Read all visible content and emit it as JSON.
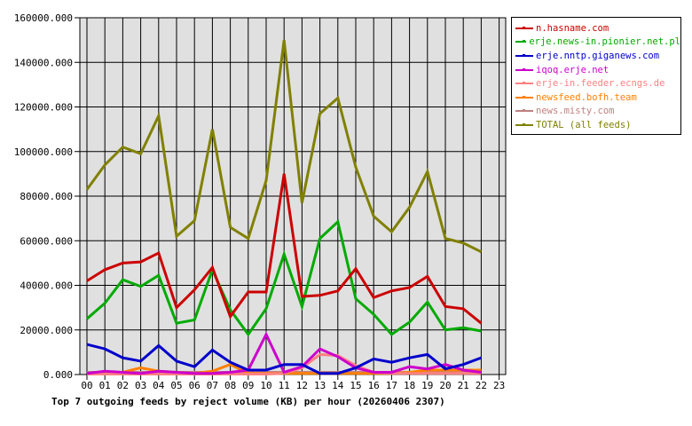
{
  "chart_data": {
    "type": "line",
    "title": "Top 7 outgoing feeds by reject volume (KB) per hour (20260406 2307)",
    "xlabel": "",
    "ylabel": "",
    "ylim": [
      0,
      160000
    ],
    "yticks": [
      "0.000",
      "20000.000",
      "40000.000",
      "60000.000",
      "80000.000",
      "100000.000",
      "120000.000",
      "140000.000",
      "160000.000"
    ],
    "categories": [
      "00",
      "01",
      "02",
      "03",
      "04",
      "05",
      "06",
      "07",
      "08",
      "09",
      "10",
      "11",
      "12",
      "13",
      "14",
      "15",
      "16",
      "17",
      "18",
      "19",
      "20",
      "21",
      "22",
      "23"
    ],
    "grid": true,
    "legend_position": "right",
    "series": [
      {
        "name": "n.hasname.com",
        "color": "#cc0000",
        "values": [
          42000,
          47000,
          50000,
          50500,
          54500,
          30000,
          38000,
          48000,
          26000,
          37000,
          37000,
          90000,
          35000,
          35500,
          37500,
          47500,
          34500,
          37500,
          39000,
          44000,
          30500,
          29500,
          23000
        ]
      },
      {
        "name": "erje.news-in.pionier.net.pl",
        "color": "#00aa00",
        "values": [
          25000,
          32000,
          42500,
          39500,
          44500,
          23000,
          24500,
          47000,
          29000,
          18000,
          29500,
          54000,
          30500,
          61000,
          68500,
          34000,
          27000,
          18000,
          23500,
          32500,
          20000,
          21000,
          19500
        ]
      },
      {
        "name": "erje.nntp.giganews.com",
        "color": "#0000cc",
        "values": [
          13500,
          11500,
          7500,
          6000,
          13000,
          6000,
          3500,
          11000,
          5500,
          2000,
          2000,
          4500,
          4500,
          500,
          500,
          3000,
          7000,
          5500,
          7500,
          9000,
          2500,
          4500,
          7500
        ]
      },
      {
        "name": "iqoq.erje.net",
        "color": "#cc00cc",
        "values": [
          500,
          1500,
          1000,
          500,
          1500,
          1000,
          500,
          500,
          1000,
          2000,
          18000,
          1000,
          3500,
          11500,
          8000,
          3000,
          1000,
          1000,
          3500,
          2500,
          4500,
          2000,
          1000
        ]
      },
      {
        "name": "erje-in.feeder.ecngs.de",
        "color": "#ff8080",
        "values": [
          200,
          200,
          200,
          200,
          200,
          200,
          200,
          200,
          200,
          200,
          200,
          500,
          3000,
          9000,
          8500,
          4000,
          1000,
          500,
          500,
          500,
          500,
          500,
          500
        ]
      },
      {
        "name": "newsfeed.bofh.team",
        "color": "#ff8000",
        "values": [
          500,
          500,
          1000,
          3000,
          1500,
          1000,
          500,
          1500,
          4500,
          500,
          500,
          500,
          500,
          500,
          500,
          500,
          500,
          500,
          1000,
          2000,
          2000,
          2000,
          2000
        ]
      },
      {
        "name": "news.misty.com",
        "color": "#c08080",
        "values": [
          1000,
          1000,
          1000,
          1000,
          1000,
          1000,
          1000,
          1000,
          1000,
          1000,
          1000,
          1000,
          1000,
          1000,
          1000,
          1000,
          1000,
          1000,
          1000,
          1000,
          1000,
          1000,
          1000
        ]
      },
      {
        "name": "TOTAL (all feeds)",
        "color": "#808000",
        "values": [
          83000,
          94000,
          102000,
          99000,
          116000,
          62000,
          69000,
          110000,
          66000,
          61000,
          87000,
          150000,
          77000,
          117000,
          124000,
          93000,
          71000,
          64000,
          75000,
          91000,
          61000,
          59000,
          55000
        ]
      }
    ]
  }
}
